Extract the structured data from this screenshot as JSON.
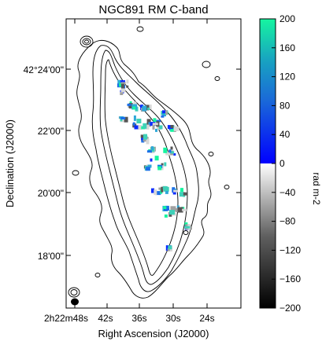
{
  "chart_data": {
    "type": "heatmap",
    "title": "NGC891  RM  C-band",
    "xlabel": "Right Ascension (J2000)",
    "ylabel": "Declination (J2000)",
    "x_ticks": [
      "2h22m48s",
      "42s",
      "36s",
      "30s",
      "24s"
    ],
    "y_ticks": [
      "42°24'00\"",
      "22'00\"",
      "20'00\"",
      "18'00\""
    ],
    "colorbar": {
      "label": "rad m-2",
      "range": [
        -200,
        200
      ],
      "ticks": [
        200,
        160,
        120,
        80,
        40,
        0,
        -40,
        -80,
        -120,
        -160,
        -200
      ],
      "tick_labels": [
        "200",
        "160",
        "120",
        "80",
        "40",
        "0",
        "−40",
        "−80",
        "−120",
        "−160",
        "−200"
      ],
      "colors": {
        "max": "#16f5a0",
        "upper_mid": "#1990c8",
        "zero_positive": "#0000ff",
        "zero_negative": "#ffffff",
        "lower_mid": "#8a8a8a",
        "min": "#000000"
      }
    },
    "rm_colors": [
      "#2ea8d8",
      "#1c6fe8",
      "#16f5a0",
      "#0a2bff",
      "#a0a0a0",
      "#555555",
      "#d8d8d8",
      "#3fd0b8"
    ],
    "contour_color": "#000000",
    "grid": false
  }
}
